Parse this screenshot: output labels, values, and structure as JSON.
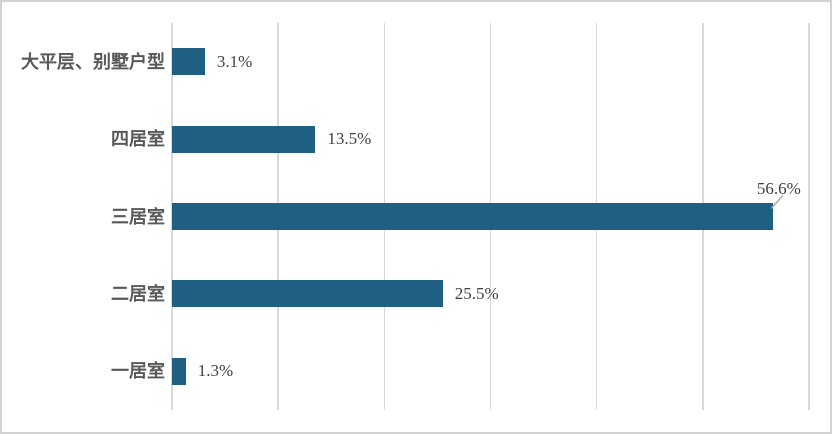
{
  "chart_data": {
    "type": "bar",
    "orientation": "horizontal",
    "title": "",
    "xlabel": "",
    "ylabel": "",
    "categories": [
      "大平层、别墅户型",
      "四居室",
      "三居室",
      "二居室",
      "一居室"
    ],
    "values": [
      3.1,
      13.5,
      56.6,
      25.5,
      1.3
    ],
    "value_labels": [
      "3.1%",
      "13.5%",
      "56.6%",
      "25.5%",
      "1.3%"
    ],
    "xlim": [
      0,
      60
    ],
    "grid_step": 10,
    "grid": "vertical-only",
    "legend": "none",
    "axis_tick_labels": "none",
    "callout_index": 2,
    "colors": {
      "bar": "#1E5F82",
      "grid": "#D9D9D9",
      "category_label": "#595959",
      "value_label": "#3F3F3F",
      "callout_line": "#A6A6A6",
      "frame_border": "#D2D2D2",
      "background": "#FFFFFF"
    }
  }
}
